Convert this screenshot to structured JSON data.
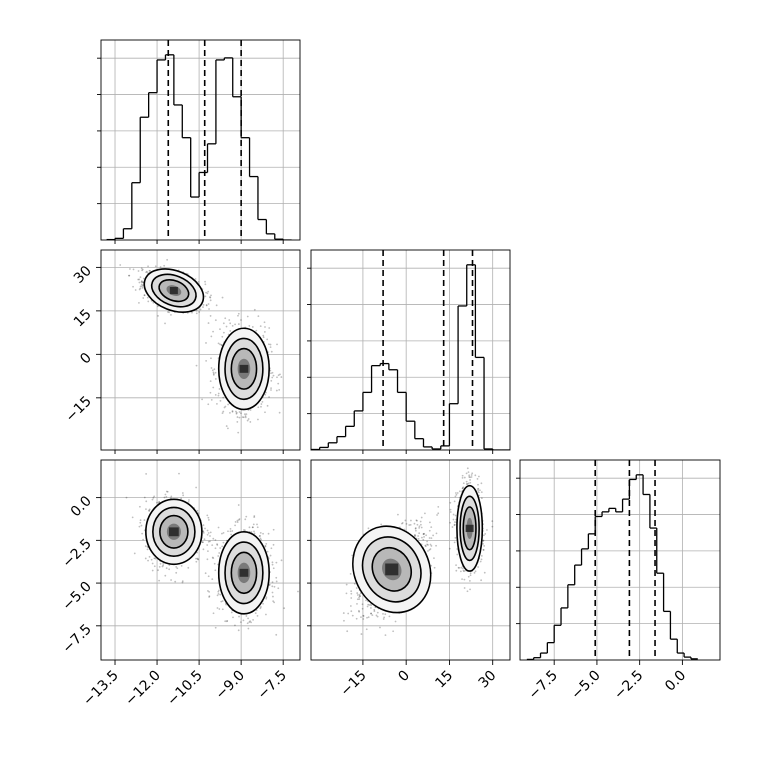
{
  "chart_data": {
    "type": "corner",
    "title": "",
    "parameters": [
      "",
      "",
      ""
    ],
    "ranges": [
      [
        -14.0,
        -6.9
      ],
      [
        -33,
        36
      ],
      [
        -9.5,
        2.2
      ]
    ],
    "ticks": [
      [
        -13.5,
        -12.0,
        -10.5,
        -9.0,
        -7.5
      ],
      [
        -15,
        0,
        15,
        30
      ],
      [
        -7.5,
        -5.0,
        -2.5,
        0.0
      ]
    ],
    "tick_labels": [
      [
        "−13.5",
        "−12.0",
        "−10.5",
        "−9.0",
        "−7.5"
      ],
      [
        "−15",
        "0",
        "15",
        "30"
      ],
      [
        "−7.5",
        "−5.0",
        "−2.5",
        "0.0"
      ]
    ],
    "grid": true,
    "marginals": [
      {
        "param": 0,
        "quantiles": [
          -11.6,
          -10.3,
          -9.0
        ],
        "edges": [
          -13.8,
          -13.5,
          -13.2,
          -12.9,
          -12.6,
          -12.3,
          -12.0,
          -11.7,
          -11.4,
          -11.1,
          -10.8,
          -10.5,
          -10.2,
          -9.9,
          -9.6,
          -9.3,
          -9.0,
          -8.7,
          -8.4,
          -8.1,
          -7.8,
          -7.5,
          -7.2
        ],
        "counts": [
          2,
          8,
          55,
          280,
          600,
          720,
          880,
          905,
          660,
          500,
          210,
          330,
          470,
          880,
          890,
          700,
          500,
          310,
          100,
          30,
          4,
          0
        ]
      },
      {
        "param": 1,
        "quantiles": [
          -8,
          13,
          23
        ],
        "edges": [
          -33,
          -30,
          -27,
          -24,
          -21,
          -18,
          -15,
          -12,
          -9,
          -6,
          -3,
          0,
          3,
          6,
          9,
          12,
          15,
          18,
          21,
          24,
          27,
          30,
          33,
          36
        ],
        "counts": [
          5,
          25,
          70,
          130,
          230,
          380,
          560,
          820,
          840,
          780,
          560,
          280,
          110,
          30,
          10,
          40,
          450,
          1400,
          1800,
          900,
          10,
          0,
          0
        ]
      },
      {
        "param": 2,
        "quantiles": [
          -5.1,
          -3.1,
          -1.6
        ],
        "edges": [
          -9.1,
          -8.7,
          -8.3,
          -7.9,
          -7.5,
          -7.1,
          -6.7,
          -6.3,
          -5.9,
          -5.5,
          -5.1,
          -4.7,
          -4.3,
          -3.9,
          -3.5,
          -3.1,
          -2.7,
          -2.3,
          -1.9,
          -1.5,
          -1.1,
          -0.7,
          -0.3,
          0.1,
          0.5,
          0.9
        ],
        "counts": [
          5,
          20,
          60,
          150,
          300,
          450,
          650,
          820,
          960,
          1090,
          1240,
          1280,
          1310,
          1280,
          1390,
          1560,
          1600,
          1430,
          1140,
          750,
          420,
          180,
          60,
          25,
          10
        ]
      }
    ],
    "joints": [
      {
        "x_param": 0,
        "y_param": 1,
        "modes": [
          {
            "center": [
              -11.4,
              22
            ],
            "sd": [
              0.55,
              3.4
            ],
            "rho": -0.45
          },
          {
            "center": [
              -8.9,
              -5
            ],
            "sd": [
              0.45,
              7.0
            ],
            "rho": 0.0
          }
        ]
      },
      {
        "x_param": 0,
        "y_param": 2,
        "modes": [
          {
            "center": [
              -11.4,
              -2.0
            ],
            "sd": [
              0.5,
              0.95
            ],
            "rho": 0.0
          },
          {
            "center": [
              -8.9,
              -4.4
            ],
            "sd": [
              0.45,
              1.2
            ],
            "rho": 0.0
          }
        ]
      },
      {
        "x_param": 1,
        "y_param": 2,
        "modes": [
          {
            "center": [
              -5,
              -4.2
            ],
            "sd": [
              6.5,
              1.3
            ],
            "rho": 0.55
          },
          {
            "center": [
              22,
              -1.8
            ],
            "sd": [
              2.2,
              1.25
            ],
            "rho": 0.0
          }
        ]
      }
    ]
  }
}
